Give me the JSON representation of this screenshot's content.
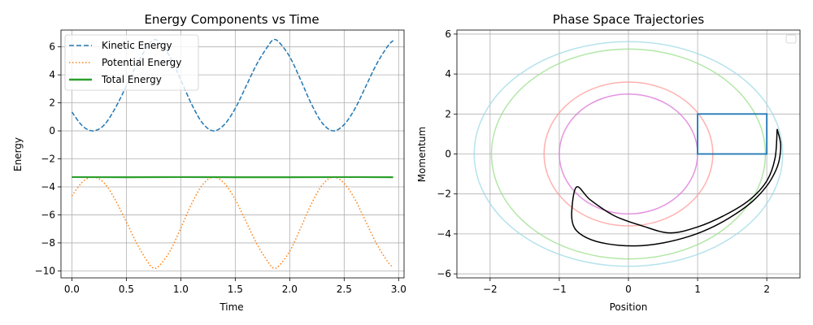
{
  "chart_data": [
    {
      "type": "line",
      "title": "Energy Components vs Time",
      "xlabel": "Time",
      "ylabel": "Energy",
      "xlim": [
        -0.1,
        3.05
      ],
      "ylim": [
        -10.5,
        7.2
      ],
      "xticks": [
        0.0,
        0.5,
        1.0,
        1.5,
        2.0,
        2.5,
        3.0
      ],
      "xtick_labels": [
        "0.0",
        "0.5",
        "1.0",
        "1.5",
        "2.0",
        "2.5",
        "3.0"
      ],
      "yticks": [
        -10,
        -8,
        -6,
        -4,
        -2,
        0,
        2,
        4,
        6
      ],
      "ytick_labels": [
        "−10",
        "−8",
        "−6",
        "−4",
        "−2",
        "0",
        "2",
        "4",
        "6"
      ],
      "grid": true,
      "legend": "upper-left",
      "series": [
        {
          "name": "Kinetic Energy",
          "color": "#1f77b4",
          "style": "dashed",
          "x": [
            0.0,
            0.1,
            0.2,
            0.3,
            0.4,
            0.5,
            0.6,
            0.7,
            0.75,
            0.8,
            0.9,
            1.0,
            1.1,
            1.2,
            1.3,
            1.4,
            1.5,
            1.6,
            1.7,
            1.8,
            1.85,
            1.9,
            2.0,
            2.1,
            2.2,
            2.3,
            2.4,
            2.5,
            2.6,
            2.7,
            2.8,
            2.9,
            2.95
          ],
          "y": [
            1.35,
            0.33,
            0.0,
            0.45,
            1.65,
            3.2,
            4.8,
            6.1,
            6.5,
            6.35,
            5.3,
            3.65,
            1.9,
            0.55,
            0.0,
            0.45,
            1.6,
            3.2,
            4.8,
            6.05,
            6.5,
            6.35,
            5.3,
            3.65,
            1.9,
            0.55,
            0.0,
            0.45,
            1.6,
            3.2,
            4.8,
            6.05,
            6.45
          ]
        },
        {
          "name": "Potential Energy",
          "color": "#ff7f0e",
          "style": "dotted",
          "x": [
            0.0,
            0.1,
            0.2,
            0.3,
            0.4,
            0.5,
            0.6,
            0.7,
            0.75,
            0.8,
            0.9,
            1.0,
            1.1,
            1.2,
            1.3,
            1.4,
            1.5,
            1.6,
            1.7,
            1.8,
            1.85,
            1.9,
            2.0,
            2.1,
            2.2,
            2.3,
            2.4,
            2.5,
            2.6,
            2.7,
            2.8,
            2.9,
            2.95
          ],
          "y": [
            -4.65,
            -3.63,
            -3.3,
            -3.75,
            -4.95,
            -6.5,
            -8.1,
            -9.4,
            -9.8,
            -9.65,
            -8.6,
            -6.95,
            -5.2,
            -3.85,
            -3.3,
            -3.75,
            -4.9,
            -6.5,
            -8.1,
            -9.35,
            -9.8,
            -9.65,
            -8.6,
            -6.95,
            -5.2,
            -3.85,
            -3.3,
            -3.75,
            -4.9,
            -6.5,
            -8.1,
            -9.35,
            -9.75
          ]
        },
        {
          "name": "Total Energy",
          "color": "#2ca02c",
          "style": "solid",
          "x": [
            0.0,
            0.5,
            1.0,
            1.5,
            2.0,
            2.5,
            2.95
          ],
          "y": [
            -3.3,
            -3.31,
            -3.3,
            -3.31,
            -3.31,
            -3.3,
            -3.31
          ]
        }
      ]
    },
    {
      "type": "line",
      "title": "Phase Space Trajectories",
      "xlabel": "Position",
      "ylabel": "Momentum",
      "xlim": [
        -2.48,
        2.48
      ],
      "ylim": [
        -6.2,
        6.2
      ],
      "xticks": [
        -2,
        -1,
        0,
        1,
        2
      ],
      "xtick_labels": [
        "−2",
        "−1",
        "0",
        "1",
        "2"
      ],
      "yticks": [
        -6,
        -4,
        -2,
        0,
        2,
        4,
        6
      ],
      "ytick_labels": [
        "−6",
        "−4",
        "−2",
        "0",
        "2",
        "4",
        "6"
      ],
      "grid": true,
      "legend": "upper-right (empty)",
      "ellipses": [
        {
          "color": "#9edae5",
          "rx": 2.23,
          "ry": 5.62
        },
        {
          "color": "#98df8a",
          "rx": 1.98,
          "ry": 5.25
        },
        {
          "color": "#ff9896",
          "rx": 1.22,
          "ry": 3.6
        },
        {
          "color": "#da70d6",
          "rx": 1.0,
          "ry": 3.0
        }
      ],
      "rectangle": {
        "color": "#1f77b4",
        "x": [
          1,
          2
        ],
        "y": [
          0,
          2
        ]
      },
      "trajectory": {
        "color": "#000000",
        "x": [
          2.15,
          2.2,
          2.18,
          2.12,
          2.0,
          1.8,
          1.55,
          1.25,
          0.9,
          0.5,
          0.1,
          -0.3,
          -0.6,
          -0.78,
          -0.82,
          -0.75,
          -0.55,
          -0.2,
          0.2,
          0.6,
          1.0,
          1.4,
          1.75,
          2.0,
          2.12,
          2.15
        ],
        "y": [
          1.25,
          0.5,
          -0.3,
          -0.9,
          -1.6,
          -2.35,
          -3.0,
          -3.6,
          -4.1,
          -4.45,
          -4.6,
          -4.5,
          -4.2,
          -3.7,
          -2.9,
          -1.65,
          -2.3,
          -3.1,
          -3.6,
          -3.95,
          -3.65,
          -3.05,
          -2.3,
          -1.35,
          -0.2,
          1.25
        ]
      }
    }
  ]
}
